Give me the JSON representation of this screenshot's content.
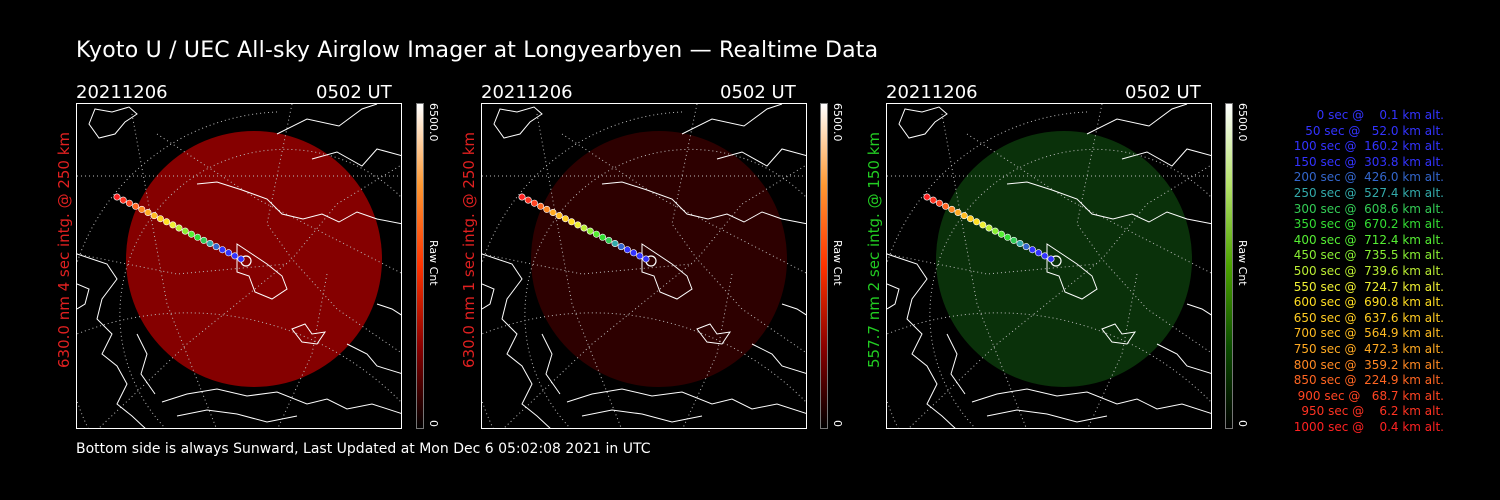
{
  "title": "Kyoto U / UEC All-sky Airglow Imager at Longyearbyen — Realtime Data",
  "footer": "Bottom side is always Sunward, Last Updated at Mon Dec  6 05:02:08 2021 in UTC",
  "panels": [
    {
      "date": "20211206",
      "time": "0502 UT",
      "ylabel": "630.0 nm 4 sec intg. @ 250 km",
      "label_color": "#e02020",
      "cbar_max": "6500.0",
      "cbar_min": "0",
      "cbar_label": "Raw Cnt",
      "cbar_gradient": [
        "#000000",
        "#8b0000",
        "#ff3300",
        "#ff9933",
        "#ffffff"
      ],
      "glow_color": "#aa0000",
      "glow_opacity": 0.78
    },
    {
      "date": "20211206",
      "time": "0502 UT",
      "ylabel": "630.0 nm 1 sec intg. @ 250 km",
      "label_color": "#e02020",
      "cbar_max": "6500.0",
      "cbar_min": "0",
      "cbar_label": "Raw Cnt",
      "cbar_gradient": [
        "#000000",
        "#8b0000",
        "#ff3300",
        "#ff9933",
        "#ffffff"
      ],
      "glow_color": "#400000",
      "glow_opacity": 0.7
    },
    {
      "date": "20211206",
      "time": "0502 UT",
      "ylabel": "557.7 nm 2 sec intg. @ 150 km",
      "label_color": "#22cc22",
      "cbar_max": "6500.0",
      "cbar_min": "0",
      "cbar_label": "Raw Cnt",
      "cbar_gradient": [
        "#000000",
        "#0b4d00",
        "#4ca200",
        "#b6e36a",
        "#ffffff"
      ],
      "glow_color": "#0d3d0d",
      "glow_opacity": 0.8
    }
  ],
  "legend": [
    {
      "text": "   0 sec @    0.1 km alt.",
      "color": "#3333ff"
    },
    {
      "text": "  50 sec @   52.0 km alt.",
      "color": "#3333ff"
    },
    {
      "text": " 100 sec @  160.2 km alt.",
      "color": "#3333ff"
    },
    {
      "text": " 150 sec @  303.8 km alt.",
      "color": "#3333ff"
    },
    {
      "text": " 200 sec @  426.0 km alt.",
      "color": "#3366cc"
    },
    {
      "text": " 250 sec @  527.4 km alt.",
      "color": "#33aaaa"
    },
    {
      "text": " 300 sec @  608.6 km alt.",
      "color": "#33cc55"
    },
    {
      "text": " 350 sec @  670.2 km alt.",
      "color": "#33dd33"
    },
    {
      "text": " 400 sec @  712.4 km alt.",
      "color": "#55ee33"
    },
    {
      "text": " 450 sec @  735.5 km alt.",
      "color": "#88ee33"
    },
    {
      "text": " 500 sec @  739.6 km alt.",
      "color": "#bbee33"
    },
    {
      "text": " 550 sec @  724.7 km alt.",
      "color": "#eeee33"
    },
    {
      "text": " 600 sec @  690.8 km alt.",
      "color": "#ffdd22"
    },
    {
      "text": " 650 sec @  637.6 km alt.",
      "color": "#ffcc22"
    },
    {
      "text": " 700 sec @  564.9 km alt.",
      "color": "#ffbb22"
    },
    {
      "text": " 750 sec @  472.3 km alt.",
      "color": "#ffaa22"
    },
    {
      "text": " 800 sec @  359.2 km alt.",
      "color": "#ff8822"
    },
    {
      "text": " 850 sec @  224.9 km alt.",
      "color": "#ff6622"
    },
    {
      "text": " 900 sec @   68.7 km alt.",
      "color": "#ff4422"
    },
    {
      "text": " 950 sec @    6.2 km alt.",
      "color": "#ff3322"
    },
    {
      "text": "1000 sec @    0.4 km alt.",
      "color": "#ff2222"
    }
  ]
}
